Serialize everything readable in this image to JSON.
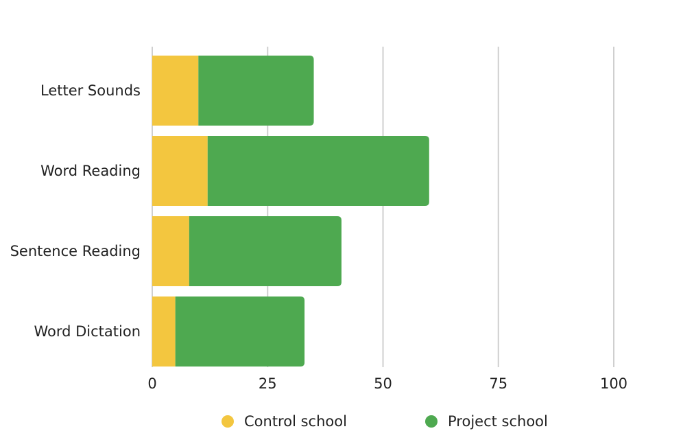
{
  "chart_data": {
    "type": "bar",
    "orientation": "horizontal",
    "stacked": true,
    "categories": [
      "Letter Sounds",
      "Word Reading",
      "Sentence Reading",
      "Word Dictation"
    ],
    "series": [
      {
        "name": "Control school",
        "color": "#f3c63f",
        "values": [
          10,
          12,
          8,
          5
        ]
      },
      {
        "name": "Project school",
        "color": "#4ea950",
        "values": [
          25,
          48,
          33,
          28
        ]
      }
    ],
    "xlim": [
      0,
      100
    ],
    "xticks": [
      0,
      25,
      50,
      75,
      100
    ],
    "grid": true,
    "legend": "bottom"
  }
}
